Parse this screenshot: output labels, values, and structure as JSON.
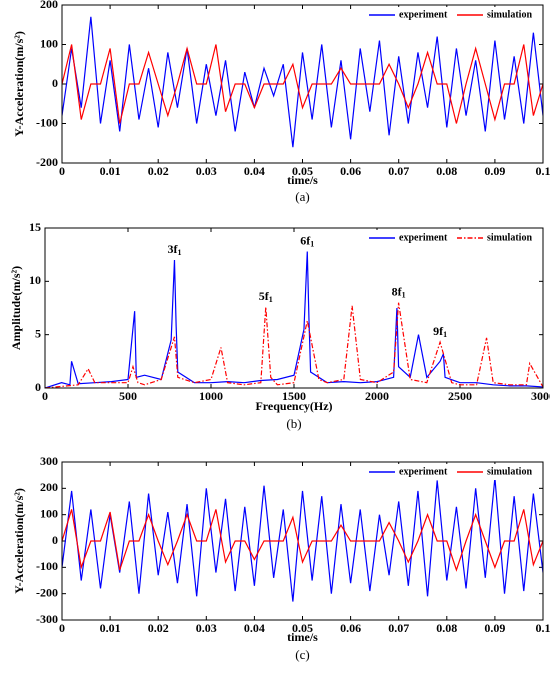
{
  "chart_data": [
    {
      "type": "line",
      "caption": "(a)",
      "xlabel": "time/s",
      "ylabel": "Y-Acceleration(m/s²)",
      "xlim": [
        0,
        0.1
      ],
      "ylim": [
        -200,
        200
      ],
      "xticks": [
        0,
        0.01,
        0.02,
        0.03,
        0.04,
        0.05,
        0.06,
        0.07,
        0.08,
        0.09,
        0.1
      ],
      "yticks": [
        -200,
        -100,
        0,
        100,
        200
      ],
      "legend": "upper right",
      "x": [
        0,
        0.002,
        0.004,
        0.006,
        0.008,
        0.01,
        0.012,
        0.014,
        0.016,
        0.018,
        0.02,
        0.022,
        0.024,
        0.026,
        0.028,
        0.03,
        0.032,
        0.034,
        0.036,
        0.038,
        0.04,
        0.042,
        0.044,
        0.046,
        0.048,
        0.05,
        0.052,
        0.054,
        0.056,
        0.058,
        0.06,
        0.062,
        0.064,
        0.066,
        0.068,
        0.07,
        0.072,
        0.074,
        0.076,
        0.078,
        0.08,
        0.082,
        0.084,
        0.086,
        0.088,
        0.09,
        0.092,
        0.094,
        0.096,
        0.098,
        0.1
      ],
      "series": [
        {
          "name": "experiment",
          "color": "#0000ff",
          "dash": "solid",
          "values": [
            -80,
            90,
            -60,
            170,
            -100,
            60,
            -120,
            100,
            -90,
            40,
            -110,
            80,
            -60,
            90,
            -100,
            50,
            -80,
            60,
            -120,
            30,
            -60,
            40,
            -30,
            50,
            -160,
            80,
            -90,
            100,
            -110,
            60,
            -140,
            90,
            -70,
            110,
            -130,
            70,
            -100,
            80,
            -60,
            120,
            -110,
            90,
            -80,
            60,
            -120,
            110,
            -90,
            70,
            -100,
            130,
            -80
          ]
        },
        {
          "name": "simulation",
          "color": "#ff0000",
          "dash": "solid",
          "values": [
            0,
            100,
            -90,
            0,
            0,
            90,
            -100,
            0,
            0,
            80,
            0,
            -80,
            0,
            90,
            0,
            0,
            100,
            -70,
            0,
            0,
            -60,
            0,
            0,
            0,
            50,
            -60,
            0,
            0,
            0,
            40,
            0,
            0,
            0,
            0,
            50,
            0,
            -60,
            0,
            80,
            0,
            0,
            -100,
            0,
            90,
            0,
            -90,
            0,
            0,
            100,
            -80,
            0
          ]
        }
      ]
    },
    {
      "type": "line",
      "caption": "(b)",
      "xlabel": "Frequency(Hz)",
      "ylabel": "Amplitude(m/s²)",
      "xlim": [
        0,
        3000
      ],
      "ylim": [
        0,
        15
      ],
      "xticks": [
        0,
        500,
        1000,
        1500,
        2000,
        2500,
        3000
      ],
      "yticks": [
        0,
        5,
        10,
        15
      ],
      "legend": "upper right",
      "series": [
        {
          "name": "experiment",
          "color": "#0000ff",
          "dash": "solid",
          "x": [
            0,
            100,
            150,
            160,
            200,
            300,
            400,
            500,
            540,
            550,
            600,
            700,
            760,
            780,
            790,
            800,
            900,
            1000,
            1100,
            1200,
            1300,
            1400,
            1500,
            1560,
            1580,
            1590,
            1600,
            1700,
            1800,
            1900,
            2000,
            2100,
            2120,
            2130,
            2200,
            2250,
            2300,
            2380,
            2400,
            2410,
            2500,
            2600,
            2700,
            2800,
            2900,
            3000
          ],
          "values": [
            0,
            0.5,
            0.3,
            2.5,
            0.4,
            0.5,
            0.6,
            0.8,
            7.2,
            1.0,
            1.2,
            0.8,
            4.5,
            12,
            5.8,
            1.5,
            0.5,
            0.5,
            0.6,
            0.5,
            0.7,
            0.8,
            1.2,
            5.5,
            12.8,
            6.5,
            1.5,
            0.5,
            0.6,
            0.5,
            0.6,
            1.0,
            7.5,
            2.0,
            1.0,
            5.0,
            1.0,
            2.5,
            3.2,
            1.0,
            0.5,
            0.5,
            0.3,
            0.2,
            0.2,
            0.1
          ]
        },
        {
          "name": "simulation",
          "color": "#ff0000",
          "dash": "dashdot",
          "x": [
            0,
            200,
            260,
            300,
            500,
            530,
            560,
            600,
            700,
            780,
            800,
            900,
            1000,
            1060,
            1100,
            1200,
            1300,
            1330,
            1360,
            1400,
            1500,
            1580,
            1650,
            1700,
            1800,
            1850,
            1900,
            2000,
            2050,
            2100,
            2130,
            2200,
            2300,
            2380,
            2450,
            2500,
            2600,
            2660,
            2700,
            2800,
            2900,
            2920,
            3000
          ],
          "values": [
            0,
            0.3,
            1.8,
            0.5,
            0.5,
            2.0,
            0.5,
            0.3,
            0.8,
            4.8,
            1.0,
            0.5,
            0.8,
            3.8,
            0.5,
            0.3,
            0.5,
            7.6,
            1.0,
            0.3,
            0.5,
            6.3,
            0.8,
            0.5,
            0.8,
            7.7,
            0.8,
            0.5,
            1.0,
            1.5,
            8.0,
            0.8,
            0.5,
            4.3,
            0.5,
            0.3,
            0.3,
            4.7,
            0.5,
            0.3,
            0.3,
            2.3,
            0.1
          ]
        }
      ],
      "annotations": [
        {
          "text": "3f",
          "sub": "1",
          "x": 780,
          "y": 12
        },
        {
          "text": "5f",
          "sub": "1",
          "x": 1330,
          "y": 7.6
        },
        {
          "text": "6f",
          "sub": "1",
          "x": 1580,
          "y": 12.8
        },
        {
          "text": "8f",
          "sub": "1",
          "x": 2130,
          "y": 8.0
        },
        {
          "text": "9f",
          "sub": "1",
          "x": 2380,
          "y": 4.3
        }
      ]
    },
    {
      "type": "line",
      "caption": "(c)",
      "xlabel": "time/s",
      "ylabel": "Y-Acceleration(m/s²)",
      "xlim": [
        0,
        0.1
      ],
      "ylim": [
        -300,
        300
      ],
      "xticks": [
        0,
        0.01,
        0.02,
        0.03,
        0.04,
        0.05,
        0.06,
        0.07,
        0.08,
        0.09,
        0.1
      ],
      "yticks": [
        -300,
        -200,
        -100,
        0,
        100,
        200,
        300
      ],
      "legend": "upper right",
      "x": [
        0,
        0.002,
        0.004,
        0.006,
        0.008,
        0.01,
        0.012,
        0.014,
        0.016,
        0.018,
        0.02,
        0.022,
        0.024,
        0.026,
        0.028,
        0.03,
        0.032,
        0.034,
        0.036,
        0.038,
        0.04,
        0.042,
        0.044,
        0.046,
        0.048,
        0.05,
        0.052,
        0.054,
        0.056,
        0.058,
        0.06,
        0.062,
        0.064,
        0.066,
        0.068,
        0.07,
        0.072,
        0.074,
        0.076,
        0.078,
        0.08,
        0.082,
        0.084,
        0.086,
        0.088,
        0.09,
        0.092,
        0.094,
        0.096,
        0.098,
        0.1
      ],
      "series": [
        {
          "name": "experiment",
          "color": "#0000ff",
          "dash": "solid",
          "values": [
            -100,
            190,
            -150,
            120,
            -180,
            100,
            -120,
            150,
            -200,
            180,
            -130,
            110,
            -160,
            140,
            -210,
            200,
            -120,
            160,
            -190,
            130,
            -170,
            210,
            -140,
            120,
            -230,
            190,
            -150,
            170,
            -200,
            140,
            -160,
            120,
            -190,
            100,
            -130,
            150,
            -170,
            190,
            -210,
            230,
            -150,
            130,
            -180,
            200,
            -140,
            240,
            -200,
            170,
            -190,
            180,
            -120
          ]
        },
        {
          "name": "simulation",
          "color": "#ff0000",
          "dash": "solid",
          "values": [
            0,
            120,
            -100,
            0,
            0,
            110,
            -110,
            0,
            0,
            100,
            0,
            -90,
            0,
            100,
            0,
            0,
            120,
            -80,
            0,
            0,
            -70,
            0,
            0,
            0,
            90,
            -80,
            0,
            0,
            0,
            60,
            0,
            0,
            0,
            0,
            70,
            0,
            -80,
            0,
            100,
            0,
            0,
            -110,
            0,
            100,
            0,
            -100,
            0,
            0,
            120,
            -90,
            0
          ]
        }
      ]
    }
  ]
}
